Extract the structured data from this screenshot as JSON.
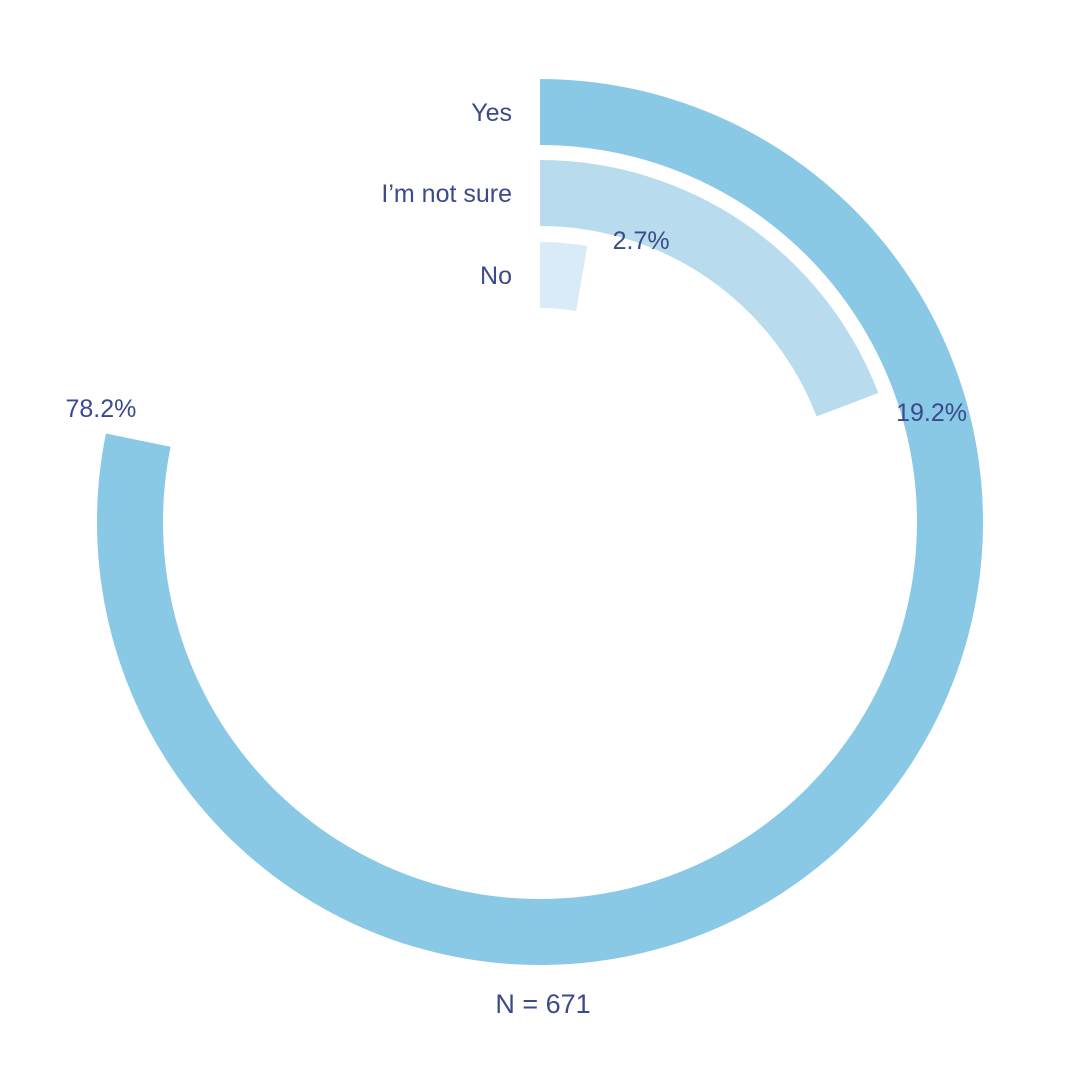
{
  "chart_data": {
    "type": "radial_bar",
    "categories": [
      "Yes",
      "I’m not sure",
      "No"
    ],
    "values": [
      78.2,
      19.2,
      2.7
    ],
    "value_labels": [
      "78.2%",
      "19.2%",
      "2.7%"
    ],
    "value_unit": "%",
    "colors": [
      "#89c9e5",
      "#b8dcee",
      "#d9ebf6"
    ],
    "text_color": "#3b4a8b",
    "footnote": "N = 671",
    "title": "",
    "xlabel": "",
    "ylabel": "",
    "grid": false,
    "legend": "none"
  }
}
